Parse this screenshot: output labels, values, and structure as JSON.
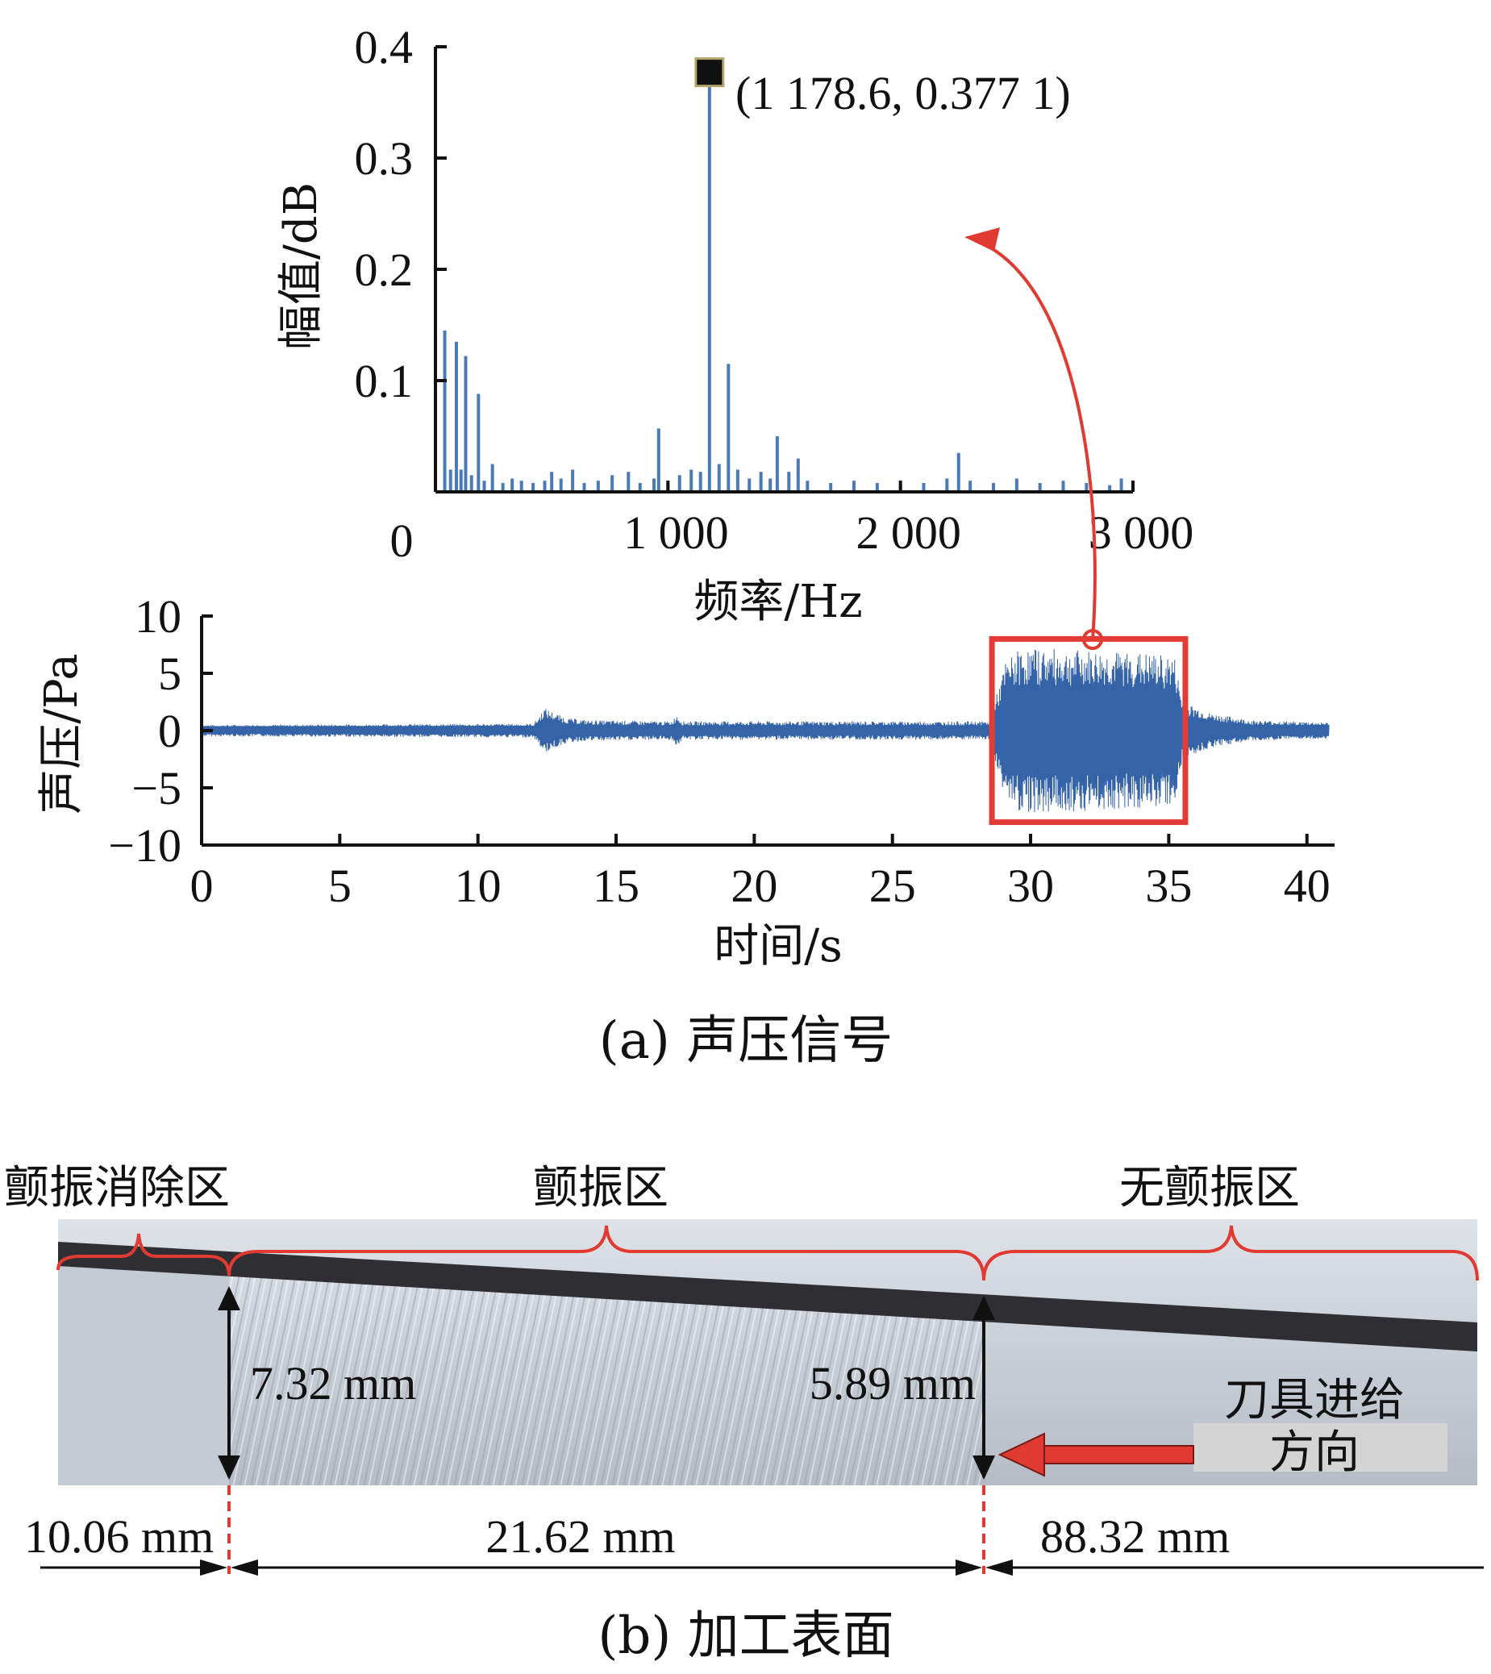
{
  "chart_data": [
    {
      "id": "spectrum",
      "type": "bar",
      "xlabel": "频率/Hz",
      "ylabel": "幅值/dB",
      "xlim": [
        0,
        3000
      ],
      "ylim": [
        0,
        0.4
      ],
      "xticks": [
        0,
        1000,
        2000,
        3000
      ],
      "xtick_labels": [
        "0",
        "1 000",
        "2 000",
        "3 000"
      ],
      "yticks": [
        0.1,
        0.2,
        0.3,
        0.4
      ],
      "ytick_labels": [
        "0.1",
        "0.2",
        "0.3",
        "0.4"
      ],
      "series_color": "#4a7ab5",
      "peak": {
        "x": 1178.6,
        "y": 0.3771,
        "label": "(1 178.6, 0.377 1)"
      },
      "bars": [
        [
          40,
          0.145
        ],
        [
          65,
          0.02
        ],
        [
          90,
          0.135
        ],
        [
          110,
          0.02
        ],
        [
          130,
          0.122
        ],
        [
          155,
          0.015
        ],
        [
          185,
          0.088
        ],
        [
          210,
          0.01
        ],
        [
          245,
          0.025
        ],
        [
          290,
          0.008
        ],
        [
          330,
          0.012
        ],
        [
          370,
          0.01
        ],
        [
          420,
          0.008
        ],
        [
          470,
          0.01
        ],
        [
          500,
          0.018
        ],
        [
          540,
          0.012
        ],
        [
          590,
          0.02
        ],
        [
          640,
          0.008
        ],
        [
          700,
          0.01
        ],
        [
          760,
          0.015
        ],
        [
          830,
          0.018
        ],
        [
          880,
          0.008
        ],
        [
          940,
          0.012
        ],
        [
          960,
          0.057
        ],
        [
          1000,
          0.008
        ],
        [
          1050,
          0.015
        ],
        [
          1100,
          0.02
        ],
        [
          1140,
          0.018
        ],
        [
          1178.6,
          0.3771
        ],
        [
          1220,
          0.025
        ],
        [
          1260,
          0.115
        ],
        [
          1300,
          0.02
        ],
        [
          1350,
          0.012
        ],
        [
          1400,
          0.018
        ],
        [
          1440,
          0.012
        ],
        [
          1470,
          0.05
        ],
        [
          1520,
          0.018
        ],
        [
          1560,
          0.03
        ],
        [
          1600,
          0.01
        ],
        [
          1700,
          0.008
        ],
        [
          1800,
          0.01
        ],
        [
          1900,
          0.008
        ],
        [
          2000,
          0.006
        ],
        [
          2100,
          0.008
        ],
        [
          2200,
          0.012
        ],
        [
          2250,
          0.035
        ],
        [
          2300,
          0.01
        ],
        [
          2400,
          0.008
        ],
        [
          2500,
          0.012
        ],
        [
          2600,
          0.008
        ],
        [
          2700,
          0.01
        ],
        [
          2800,
          0.008
        ],
        [
          2900,
          0.006
        ],
        [
          2950,
          0.012
        ]
      ]
    },
    {
      "id": "pressure",
      "type": "line",
      "xlabel": "时间/s",
      "ylabel": "声压/Pa",
      "xlim": [
        0,
        41
      ],
      "ylim": [
        -10,
        10
      ],
      "xticks": [
        0,
        5,
        10,
        15,
        20,
        25,
        30,
        35,
        40
      ],
      "xtick_labels": [
        "0",
        "5",
        "10",
        "15",
        "20",
        "25",
        "30",
        "35",
        "40"
      ],
      "yticks": [
        10,
        5,
        0,
        -5,
        -10
      ],
      "ytick_labels": [
        "10",
        "5",
        "0",
        "−5",
        "−10"
      ],
      "series_color": "#3563a8",
      "envelope": [
        [
          0,
          0.5
        ],
        [
          12,
          0.6
        ],
        [
          12.2,
          1.2
        ],
        [
          12.4,
          2.0
        ],
        [
          12.8,
          1.5
        ],
        [
          13.2,
          1.1
        ],
        [
          14,
          0.9
        ],
        [
          17,
          0.8
        ],
        [
          17.2,
          1.4
        ],
        [
          17.4,
          0.8
        ],
        [
          22,
          0.8
        ],
        [
          28.5,
          0.8
        ],
        [
          29.1,
          6.0
        ],
        [
          29.5,
          7.0
        ],
        [
          30.2,
          7.2
        ],
        [
          32,
          7.0
        ],
        [
          34,
          6.8
        ],
        [
          35.2,
          6.5
        ],
        [
          35.5,
          2.5
        ],
        [
          36.5,
          1.5
        ],
        [
          38,
          0.9
        ],
        [
          41,
          0.7
        ]
      ],
      "highlight": {
        "x": [
          28.6,
          35.6
        ],
        "y": [
          -8,
          8
        ],
        "color": "#e33b35"
      }
    }
  ],
  "captions": {
    "a": "(a)  声压信号",
    "b": "(b)  加工表面"
  },
  "photo": {
    "zones": [
      "颤振消除区",
      "颤振区",
      "无颤振区"
    ],
    "heights": [
      "7.32 mm",
      "5.89 mm"
    ],
    "feed_label_line1": "刀具进给",
    "feed_label_line2": "方向",
    "lengths": [
      "10.06 mm",
      "21.62 mm",
      "88.32 mm"
    ],
    "brace_color": "#e03a33",
    "arrow_color": "#e03a33"
  }
}
